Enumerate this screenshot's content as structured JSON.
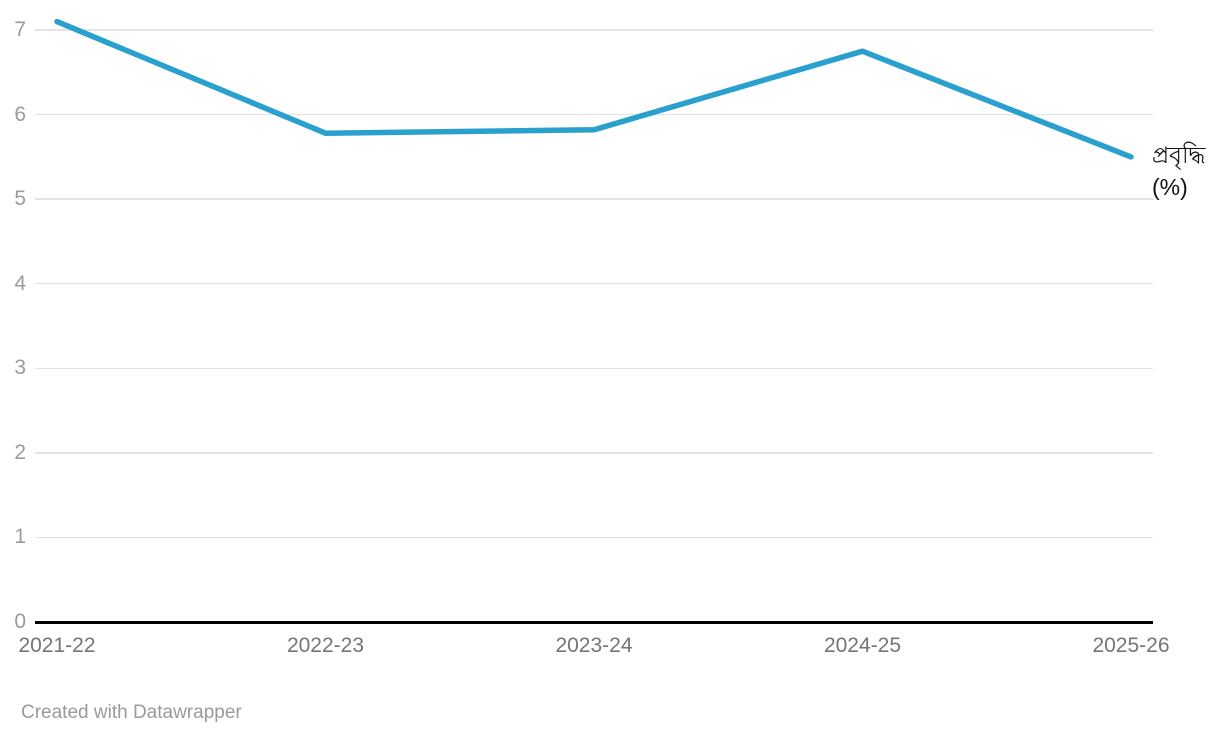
{
  "chart_data": {
    "type": "line",
    "categories": [
      "2021-22",
      "2022-23",
      "2023-24",
      "2024-25",
      "2025-26"
    ],
    "series": [
      {
        "name": "প্রবৃদ্ধি (%)",
        "label_lines": [
          "প্রবৃদ্ধি",
          "(%)"
        ],
        "values": [
          7.1,
          5.78,
          5.82,
          6.75,
          5.5
        ]
      }
    ],
    "title": "",
    "xlabel": "",
    "ylabel": "",
    "ylim": [
      0,
      7
    ],
    "yticks": [
      0,
      1,
      2,
      3,
      4,
      5,
      6,
      7
    ],
    "grid": true,
    "legend_position": "end-of-line"
  },
  "colors": {
    "line": "#29a0ce",
    "grid": "#e3e3e3",
    "axis": "#000000",
    "y_tick_label": "#9b9b9b",
    "x_tick_label": "#757575",
    "series_label": "#111111",
    "footer": "#9a9a9a"
  },
  "footer": {
    "attribution": "Created with Datawrapper"
  }
}
